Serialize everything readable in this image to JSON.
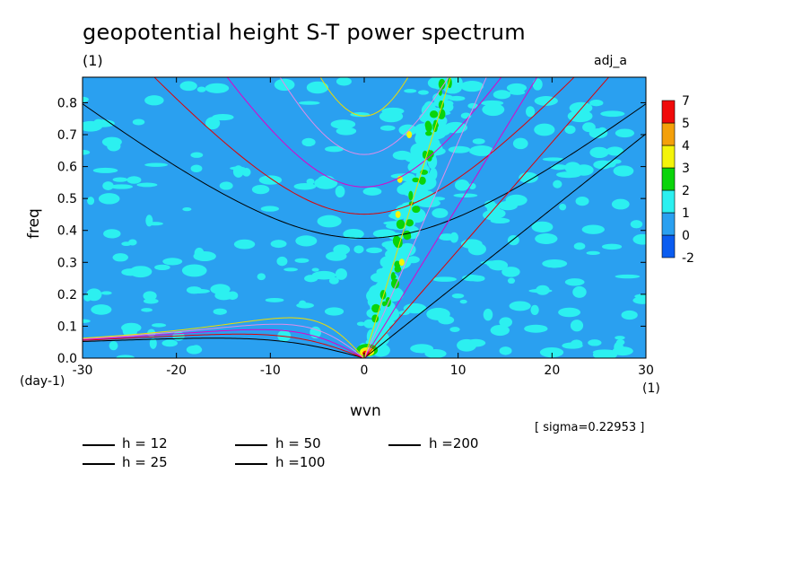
{
  "title": "geopotential height S-T power spectrum",
  "subtitle": "(1)",
  "run_label": "adj_a",
  "sigma_note": "[ sigma=0.22953 ]",
  "chart_data": {
    "type": "heatmap",
    "xlabel": "wvn",
    "ylabel": "freq",
    "x_unit": "(1)",
    "y_unit": "(day-1)",
    "xlim": [
      -30,
      30
    ],
    "ylim": [
      0,
      0.88
    ],
    "x_ticks": [
      -30,
      -20,
      -10,
      0,
      10,
      20,
      30
    ],
    "y_ticks": [
      0.0,
      0.1,
      0.2,
      0.3,
      0.4,
      0.5,
      0.6,
      0.7,
      0.8
    ],
    "colorbar": {
      "levels": [
        "-2",
        "0",
        "1",
        "2",
        "3",
        "4",
        "5",
        "7"
      ],
      "colors": [
        "#0a5cf0",
        "#2aa0f0",
        "#2cf0f0",
        "#0ad40a",
        "#f4f40a",
        "#f4a00a",
        "#f00a0a"
      ]
    },
    "background_color": "#2aa0f0",
    "dispersion_curves": [
      {
        "name": "h = 12",
        "color": "#000000",
        "h": 12
      },
      {
        "name": "h = 25",
        "color": "#e00000",
        "h": 25
      },
      {
        "name": "h = 50",
        "color": "#e000c8",
        "h": 50
      },
      {
        "name": "h =100",
        "color": "#e08ce8",
        "h": 100
      },
      {
        "name": "h =200",
        "color": "#f0dc00",
        "h": 200
      }
    ]
  }
}
